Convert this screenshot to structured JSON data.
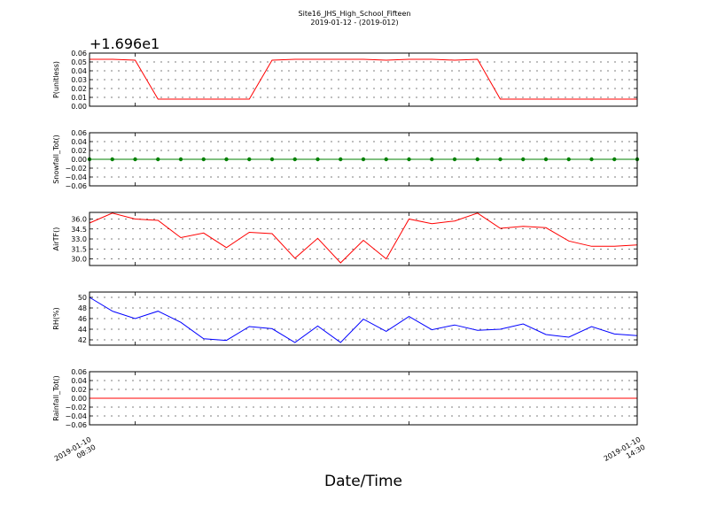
{
  "figure": {
    "title": "Site16_JHS_High_School_Fifteen",
    "subtitle": "2019-01-12 - (2019-012)",
    "xlabel": "Date/Time",
    "offset_text": "+1.696e1",
    "x_start_label": "2019-01-10\n08:30",
    "x_end_label": "2019-01-10\n14:30"
  },
  "chart_data": [
    {
      "type": "line",
      "ylabel": "P(unitless)",
      "color": "#ff0000",
      "markers": false,
      "ylim": [
        0.0,
        0.06
      ],
      "yticks": [
        0.0,
        0.01,
        0.02,
        0.03,
        0.04,
        0.05,
        0.06
      ],
      "ytick_labels": [
        "0.00",
        "0.01",
        "0.02",
        "0.03",
        "0.04",
        "0.05",
        "0.06"
      ],
      "offset": 16.96,
      "grid": true,
      "x": [
        0,
        1,
        2,
        3,
        4,
        5,
        6,
        7,
        8,
        9,
        10,
        11,
        12,
        13,
        14,
        15,
        16,
        17,
        18,
        19,
        20,
        21,
        22,
        23,
        24
      ],
      "values": [
        0.053,
        0.053,
        0.052,
        0.008,
        0.008,
        0.008,
        0.008,
        0.008,
        0.052,
        0.053,
        0.053,
        0.053,
        0.053,
        0.052,
        0.053,
        0.053,
        0.052,
        0.053,
        0.008,
        0.008,
        0.008,
        0.008,
        0.008,
        0.008,
        0.008
      ]
    },
    {
      "type": "line",
      "ylabel": "Snowfall_Tot()",
      "color": "#008000",
      "markers": true,
      "ylim": [
        -0.06,
        0.06
      ],
      "yticks": [
        -0.06,
        -0.04,
        -0.02,
        0.0,
        0.02,
        0.04,
        0.06
      ],
      "ytick_labels": [
        "−0.06",
        "−0.04",
        "−0.02",
        "0.00",
        "0.02",
        "0.04",
        "0.06"
      ],
      "grid": true,
      "x": [
        0,
        1,
        2,
        3,
        4,
        5,
        6,
        7,
        8,
        9,
        10,
        11,
        12,
        13,
        14,
        15,
        16,
        17,
        18,
        19,
        20,
        21,
        22,
        23,
        24
      ],
      "values": [
        0,
        0,
        0,
        0,
        0,
        0,
        0,
        0,
        0,
        0,
        0,
        0,
        0,
        0,
        0,
        0,
        0,
        0,
        0,
        0,
        0,
        0,
        0,
        0,
        0
      ]
    },
    {
      "type": "line",
      "ylabel": "AirTF()",
      "color": "#ff0000",
      "markers": false,
      "ylim": [
        29.0,
        37.0
      ],
      "yticks": [
        30.0,
        31.5,
        33.0,
        34.5,
        36.0
      ],
      "ytick_labels": [
        "30.0",
        "31.5",
        "33.0",
        "34.5",
        "36.0"
      ],
      "grid": true,
      "x": [
        0,
        1,
        2,
        3,
        4,
        5,
        6,
        7,
        8,
        9,
        10,
        11,
        12,
        13,
        14,
        15,
        16,
        17,
        18,
        19,
        20,
        21,
        22,
        23,
        24
      ],
      "values": [
        35.4,
        36.9,
        36.0,
        35.8,
        33.2,
        33.9,
        31.7,
        34.0,
        33.8,
        30.1,
        33.1,
        29.4,
        32.8,
        30.0,
        36.0,
        35.3,
        35.7,
        36.9,
        34.6,
        34.9,
        34.7,
        32.7,
        31.9,
        31.9,
        32.1
      ]
    },
    {
      "type": "line",
      "ylabel": "RH(%)",
      "color": "#0000ff",
      "markers": false,
      "ylim": [
        41.0,
        51.0
      ],
      "yticks": [
        42,
        44,
        46,
        48,
        50
      ],
      "ytick_labels": [
        "42",
        "44",
        "46",
        "48",
        "50"
      ],
      "grid": true,
      "x": [
        0,
        1,
        2,
        3,
        4,
        5,
        6,
        7,
        8,
        9,
        10,
        11,
        12,
        13,
        14,
        15,
        16,
        17,
        18,
        19,
        20,
        21,
        22,
        23,
        24
      ],
      "values": [
        50.0,
        47.4,
        46.0,
        47.4,
        45.3,
        42.2,
        41.9,
        44.5,
        44.1,
        41.5,
        44.6,
        41.5,
        45.9,
        43.6,
        46.4,
        43.9,
        44.8,
        43.8,
        44.0,
        45.0,
        43.0,
        42.5,
        44.5,
        43.1,
        42.8
      ]
    },
    {
      "type": "line",
      "ylabel": "Rainfall_Tot()",
      "color": "#ff0000",
      "markers": false,
      "ylim": [
        -0.06,
        0.06
      ],
      "yticks": [
        -0.06,
        -0.04,
        -0.02,
        0.0,
        0.02,
        0.04,
        0.06
      ],
      "ytick_labels": [
        "−0.06",
        "−0.04",
        "−0.02",
        "0.00",
        "0.02",
        "0.04",
        "0.06"
      ],
      "grid": true,
      "x": [
        0,
        1,
        2,
        3,
        4,
        5,
        6,
        7,
        8,
        9,
        10,
        11,
        12,
        13,
        14,
        15,
        16,
        17,
        18,
        19,
        20,
        21,
        22,
        23,
        24
      ],
      "values": [
        0,
        0,
        0,
        0,
        0,
        0,
        0,
        0,
        0,
        0,
        0,
        0,
        0,
        0,
        0,
        0,
        0,
        0,
        0,
        0,
        0,
        0,
        0,
        0,
        0
      ]
    }
  ]
}
